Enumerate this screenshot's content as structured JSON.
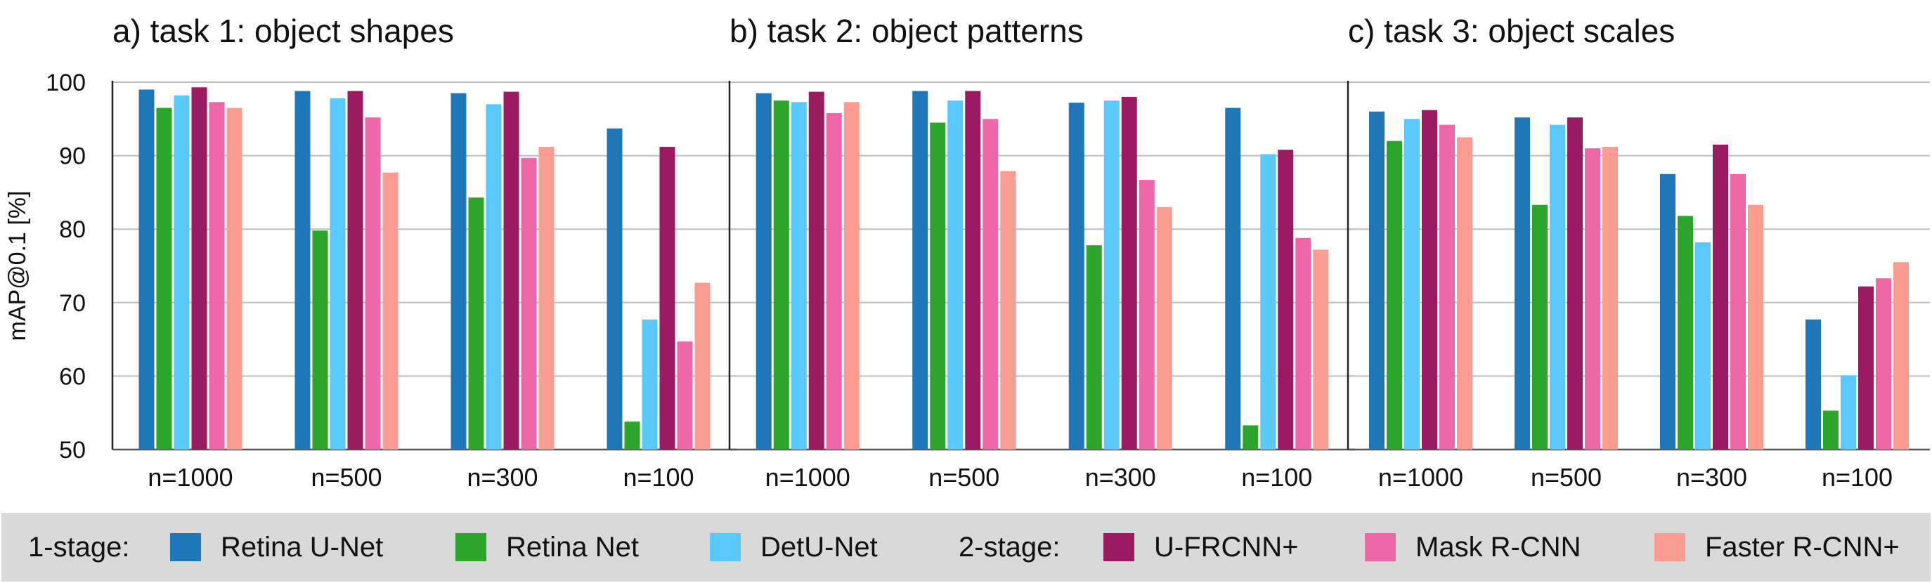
{
  "chart_data": [
    {
      "type": "bar",
      "title": "a) task 1: object shapes",
      "ylabel": "mAP@0.1 [%]",
      "ylim": [
        50,
        100
      ],
      "yticks": [
        50,
        60,
        70,
        80,
        90,
        100
      ],
      "grid": true,
      "categories": [
        "n=1000",
        "n=500",
        "n=300",
        "n=100"
      ],
      "series": [
        {
          "name": "Retina U-Net",
          "values": [
            99.0,
            98.8,
            98.5,
            93.7
          ]
        },
        {
          "name": "Retina Net",
          "values": [
            96.5,
            79.8,
            84.3,
            53.8
          ]
        },
        {
          "name": "DetU-Net",
          "values": [
            98.2,
            97.8,
            97.0,
            67.7
          ]
        },
        {
          "name": "U-FRCNN+",
          "values": [
            99.3,
            98.8,
            98.7,
            91.2
          ]
        },
        {
          "name": "Mask R-CNN",
          "values": [
            97.3,
            95.2,
            89.7,
            64.7
          ]
        },
        {
          "name": "Faster R-CNN+",
          "values": [
            96.5,
            87.7,
            91.2,
            72.7
          ]
        }
      ]
    },
    {
      "type": "bar",
      "title": "b) task 2: object patterns",
      "ylim": [
        50,
        100
      ],
      "grid": true,
      "categories": [
        "n=1000",
        "n=500",
        "n=300",
        "n=100"
      ],
      "series": [
        {
          "name": "Retina U-Net",
          "values": [
            98.5,
            98.8,
            97.2,
            96.5
          ]
        },
        {
          "name": "Retina Net",
          "values": [
            97.5,
            94.5,
            77.8,
            53.3
          ]
        },
        {
          "name": "DetU-Net",
          "values": [
            97.3,
            97.5,
            97.5,
            90.2
          ]
        },
        {
          "name": "U-FRCNN+",
          "values": [
            98.7,
            98.8,
            98.0,
            90.8
          ]
        },
        {
          "name": "Mask R-CNN",
          "values": [
            95.8,
            95.0,
            86.7,
            78.8
          ]
        },
        {
          "name": "Faster R-CNN+",
          "values": [
            97.3,
            87.9,
            83.0,
            77.2
          ]
        }
      ]
    },
    {
      "type": "bar",
      "title": "c) task 3: object scales",
      "ylim": [
        50,
        100
      ],
      "grid": true,
      "categories": [
        "n=1000",
        "n=500",
        "n=300",
        "n=100"
      ],
      "series": [
        {
          "name": "Retina U-Net",
          "values": [
            96.0,
            95.2,
            87.5,
            67.7
          ]
        },
        {
          "name": "Retina Net",
          "values": [
            92.0,
            83.3,
            81.8,
            55.3
          ]
        },
        {
          "name": "DetU-Net",
          "values": [
            95.0,
            94.2,
            78.2,
            60.1
          ]
        },
        {
          "name": "U-FRCNN+",
          "values": [
            96.2,
            95.2,
            91.5,
            72.2
          ]
        },
        {
          "name": "Mask R-CNN",
          "values": [
            94.2,
            91.0,
            87.5,
            73.3
          ]
        },
        {
          "name": "Faster R-CNN+",
          "values": [
            92.5,
            91.2,
            83.3,
            75.5
          ]
        }
      ]
    }
  ],
  "legend": {
    "group1_label": "1-stage:",
    "group2_label": "2-stage:",
    "items": [
      {
        "label": "Retina U-Net",
        "color": "#1f77b8"
      },
      {
        "label": "Retina Net",
        "color": "#2ca52c"
      },
      {
        "label": "DetU-Net",
        "color": "#5ac8fa"
      },
      {
        "label": "U-FRCNN+",
        "color": "#9b1b62"
      },
      {
        "label": "Mask R-CNN",
        "color": "#ee67a7"
      },
      {
        "label": "Faster R-CNN+",
        "color": "#fb9c93"
      }
    ]
  }
}
